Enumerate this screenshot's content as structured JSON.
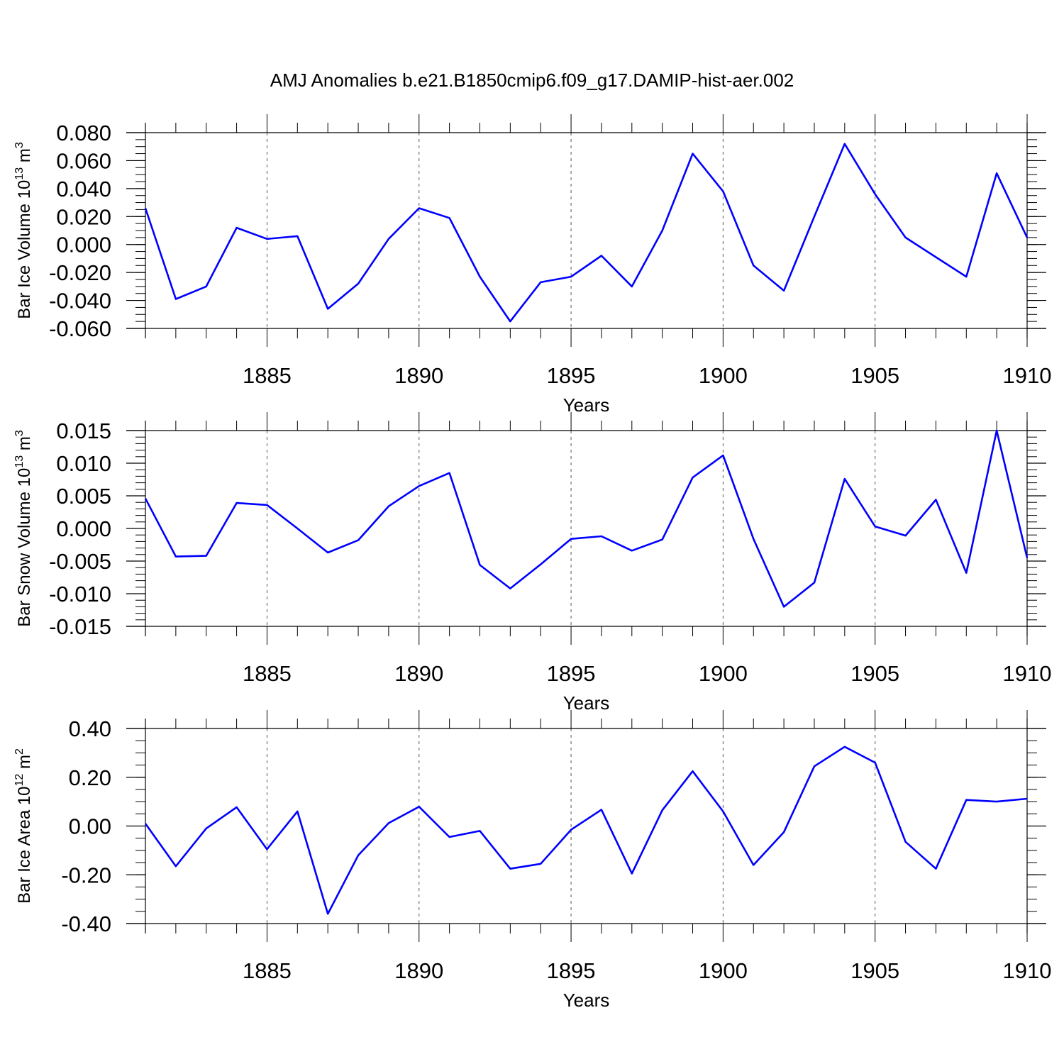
{
  "title": "AMJ Anomalies b.e21.B1850cmip6.f09_g17.DAMIP-hist-aer.002",
  "line_color": "#0000ff",
  "chart_data": [
    {
      "type": "line",
      "xlabel": "Years",
      "ylabel_main": "Bar Ice Volume 10",
      "ylabel_exp": "13",
      "ylabel_unit": "m",
      "ylabel_unit_exp": "3",
      "xlim": [
        1881,
        1910
      ],
      "ylim": [
        -0.06,
        0.08
      ],
      "x_ticks": [
        1885,
        1890,
        1895,
        1900,
        1905,
        1910
      ],
      "y_ticks": [
        -0.06,
        -0.04,
        -0.02,
        0.0,
        0.02,
        0.04,
        0.06,
        0.08
      ],
      "y_tick_labels": [
        "-0.060",
        "-0.040",
        "-0.020",
        "0.000",
        "0.020",
        "0.040",
        "0.060",
        "0.080"
      ],
      "y_minor_step": 0.005,
      "grid": "dashed vertical at major x ticks",
      "x": [
        1881,
        1882,
        1883,
        1884,
        1885,
        1886,
        1887,
        1888,
        1889,
        1890,
        1891,
        1892,
        1893,
        1894,
        1895,
        1896,
        1897,
        1898,
        1899,
        1900,
        1901,
        1902,
        1903,
        1904,
        1905,
        1906,
        1907,
        1908,
        1909,
        1910
      ],
      "series": [
        {
          "values": [
            0.026,
            -0.039,
            -0.03,
            0.012,
            0.004,
            0.006,
            -0.046,
            -0.028,
            0.004,
            0.026,
            0.019,
            -0.023,
            -0.055,
            -0.027,
            -0.023,
            -0.008,
            -0.03,
            0.01,
            0.065,
            0.038,
            -0.015,
            -0.033,
            0.02,
            0.072,
            0.036,
            0.005,
            -0.009,
            -0.023,
            0.051,
            0.005
          ]
        }
      ]
    },
    {
      "type": "line",
      "xlabel": "Years",
      "ylabel_main": "Bar Snow Volume 10",
      "ylabel_exp": "13",
      "ylabel_unit": "m",
      "ylabel_unit_exp": "3",
      "xlim": [
        1881,
        1910
      ],
      "ylim": [
        -0.015,
        0.015
      ],
      "x_ticks": [
        1885,
        1890,
        1895,
        1900,
        1905,
        1910
      ],
      "y_ticks": [
        -0.015,
        -0.01,
        -0.005,
        0.0,
        0.005,
        0.01,
        0.015
      ],
      "y_tick_labels": [
        "-0.015",
        "-0.010",
        "-0.005",
        "0.000",
        "0.005",
        "0.010",
        "0.015"
      ],
      "y_minor_step": 0.001,
      "grid": "dashed vertical at major x ticks",
      "x": [
        1881,
        1882,
        1883,
        1884,
        1885,
        1886,
        1887,
        1888,
        1889,
        1890,
        1891,
        1892,
        1893,
        1894,
        1895,
        1896,
        1897,
        1898,
        1899,
        1900,
        1901,
        1902,
        1903,
        1904,
        1905,
        1906,
        1907,
        1908,
        1909,
        1910
      ],
      "series": [
        {
          "values": [
            0.0046,
            -0.0043,
            -0.0042,
            0.0039,
            0.0036,
            0.0,
            -0.0037,
            -0.0018,
            0.0034,
            0.0065,
            0.0085,
            -0.0056,
            -0.0092,
            -0.0055,
            -0.0016,
            -0.0012,
            -0.0034,
            -0.0017,
            0.0078,
            0.0112,
            -0.0016,
            -0.012,
            -0.0083,
            0.0076,
            0.0003,
            -0.0011,
            0.0044,
            -0.0068,
            0.015,
            -0.0045
          ]
        }
      ]
    },
    {
      "type": "line",
      "xlabel": "Years",
      "ylabel_main": "Bar Ice Area 10",
      "ylabel_exp": "12",
      "ylabel_unit": "m",
      "ylabel_unit_exp": "2",
      "xlim": [
        1881,
        1910
      ],
      "ylim": [
        -0.4,
        0.4
      ],
      "x_ticks": [
        1885,
        1890,
        1895,
        1900,
        1905,
        1910
      ],
      "y_ticks": [
        -0.4,
        -0.2,
        0.0,
        0.2,
        0.4
      ],
      "y_tick_labels": [
        "-0.40",
        "-0.20",
        "0.00",
        "0.20",
        "0.40"
      ],
      "y_minor_step": 0.05,
      "grid": "dashed vertical at major x ticks",
      "x": [
        1881,
        1882,
        1883,
        1884,
        1885,
        1886,
        1887,
        1888,
        1889,
        1890,
        1891,
        1892,
        1893,
        1894,
        1895,
        1896,
        1897,
        1898,
        1899,
        1900,
        1901,
        1902,
        1903,
        1904,
        1905,
        1906,
        1907,
        1908,
        1909,
        1910
      ],
      "series": [
        {
          "values": [
            0.01,
            -0.165,
            -0.01,
            0.077,
            -0.095,
            0.06,
            -0.36,
            -0.12,
            0.012,
            0.079,
            -0.045,
            -0.02,
            -0.175,
            -0.155,
            -0.015,
            0.067,
            -0.195,
            0.065,
            0.225,
            0.06,
            -0.16,
            -0.025,
            0.245,
            0.325,
            0.26,
            -0.065,
            -0.175,
            0.107,
            0.1,
            0.112
          ]
        }
      ]
    }
  ]
}
